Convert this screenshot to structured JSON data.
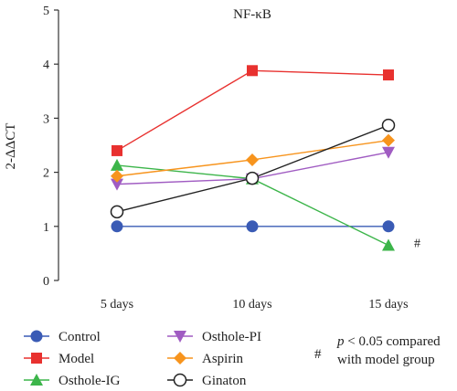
{
  "chart_data": {
    "type": "line",
    "title": "NF-κB",
    "ylabel": "2-ΔΔCT",
    "xlabel": "",
    "categories": [
      "5 days",
      "10 days",
      "15 days"
    ],
    "ylim": [
      0,
      5
    ],
    "yticks": [
      "0",
      "1",
      "2",
      "3",
      "4",
      "5"
    ],
    "grid": false,
    "legend_position": "bottom",
    "series": [
      {
        "name": "Control",
        "values": [
          1.0,
          1.0,
          1.0
        ],
        "color": "#3a5bb5",
        "marker": "circle-filled"
      },
      {
        "name": "Model",
        "values": [
          2.4,
          3.88,
          3.8
        ],
        "color": "#e8312f",
        "marker": "square"
      },
      {
        "name": "Osthole-IG",
        "values": [
          2.13,
          1.88,
          0.65
        ],
        "color": "#3cb54a",
        "marker": "triangle-up"
      },
      {
        "name": "Osthole-PI",
        "values": [
          1.78,
          1.88,
          2.37
        ],
        "color": "#a05cc2",
        "marker": "triangle-down"
      },
      {
        "name": "Aspirin",
        "values": [
          1.93,
          2.23,
          2.59
        ],
        "color": "#f7941d",
        "marker": "diamond"
      },
      {
        "name": "Ginaton",
        "values": [
          1.27,
          1.89,
          2.87
        ],
        "color": "#222222",
        "marker": "circle-open"
      }
    ],
    "annotations": [
      {
        "text": "#",
        "series": "Osthole-IG",
        "category": "15 days"
      }
    ],
    "note": {
      "symbol": "#",
      "line1": "p < 0.05 compared",
      "line2": "with model group"
    }
  }
}
